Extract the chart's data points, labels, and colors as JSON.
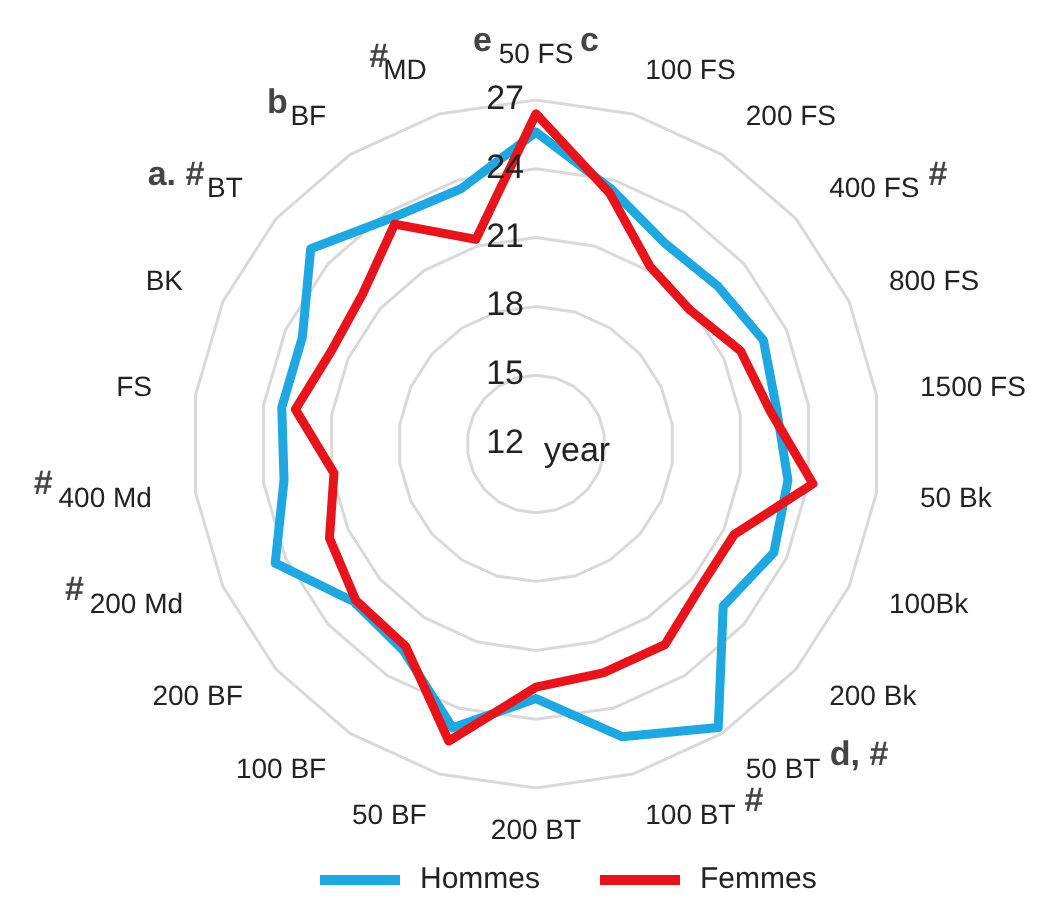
{
  "chart_data": {
    "type": "radar",
    "categories": [
      "50 FS",
      "100 FS",
      "200 FS",
      "400 FS",
      "800 FS",
      "1500 FS",
      "50 Bk",
      "100Bk",
      "200 Bk",
      "50 BT",
      "100 BT",
      "200 BT",
      "50 BF",
      "100 BF",
      "200 BF",
      "200 Md",
      "400 Md",
      "FS",
      "BK",
      "BT",
      "BF",
      "MD"
    ],
    "series": [
      {
        "name": "Hommes",
        "color": "#1ea7e1",
        "values": [
          25.6,
          23.6,
          22.4,
          22.5,
          22.9,
          22.6,
          23.1,
          23.4,
          22.8,
          26.7,
          25.3,
          23.1,
          24.9,
          22.7,
          22.5,
          24.5,
          23.1,
          23.2,
          23.2,
          25.0,
          23.7,
          23.6
        ]
      },
      {
        "name": "Femmes",
        "color": "#e8141c",
        "values": [
          26.4,
          23.4,
          21.2,
          20.9,
          21.8,
          22.3,
          24.2,
          21.5,
          21.5,
          22.4,
          22.4,
          22.6,
          25.5,
          22.5,
          22.4,
          21.9,
          20.9,
          22.6,
          21.8,
          22.0,
          23.4,
          21.3
        ]
      }
    ],
    "ylim": [
      12,
      27
    ],
    "yticks": [
      12,
      15,
      18,
      21,
      24,
      27
    ],
    "ylabel": "year",
    "grid": true,
    "legend": "bottom",
    "annotations": [
      {
        "text": "e",
        "x": "50 FS"
      },
      {
        "text": "c",
        "x": "50 FS"
      },
      {
        "text": "#",
        "x": "400 FS"
      },
      {
        "text": "d, #",
        "x": "50 BT"
      },
      {
        "text": "#",
        "x": "100 BT"
      },
      {
        "text": "#",
        "x": "200 Md"
      },
      {
        "text": "#",
        "x": "400 Md"
      },
      {
        "text": "a. #",
        "x": "BT"
      },
      {
        "text": "b",
        "x": "BF"
      },
      {
        "text": "#",
        "x": "MD"
      }
    ]
  }
}
